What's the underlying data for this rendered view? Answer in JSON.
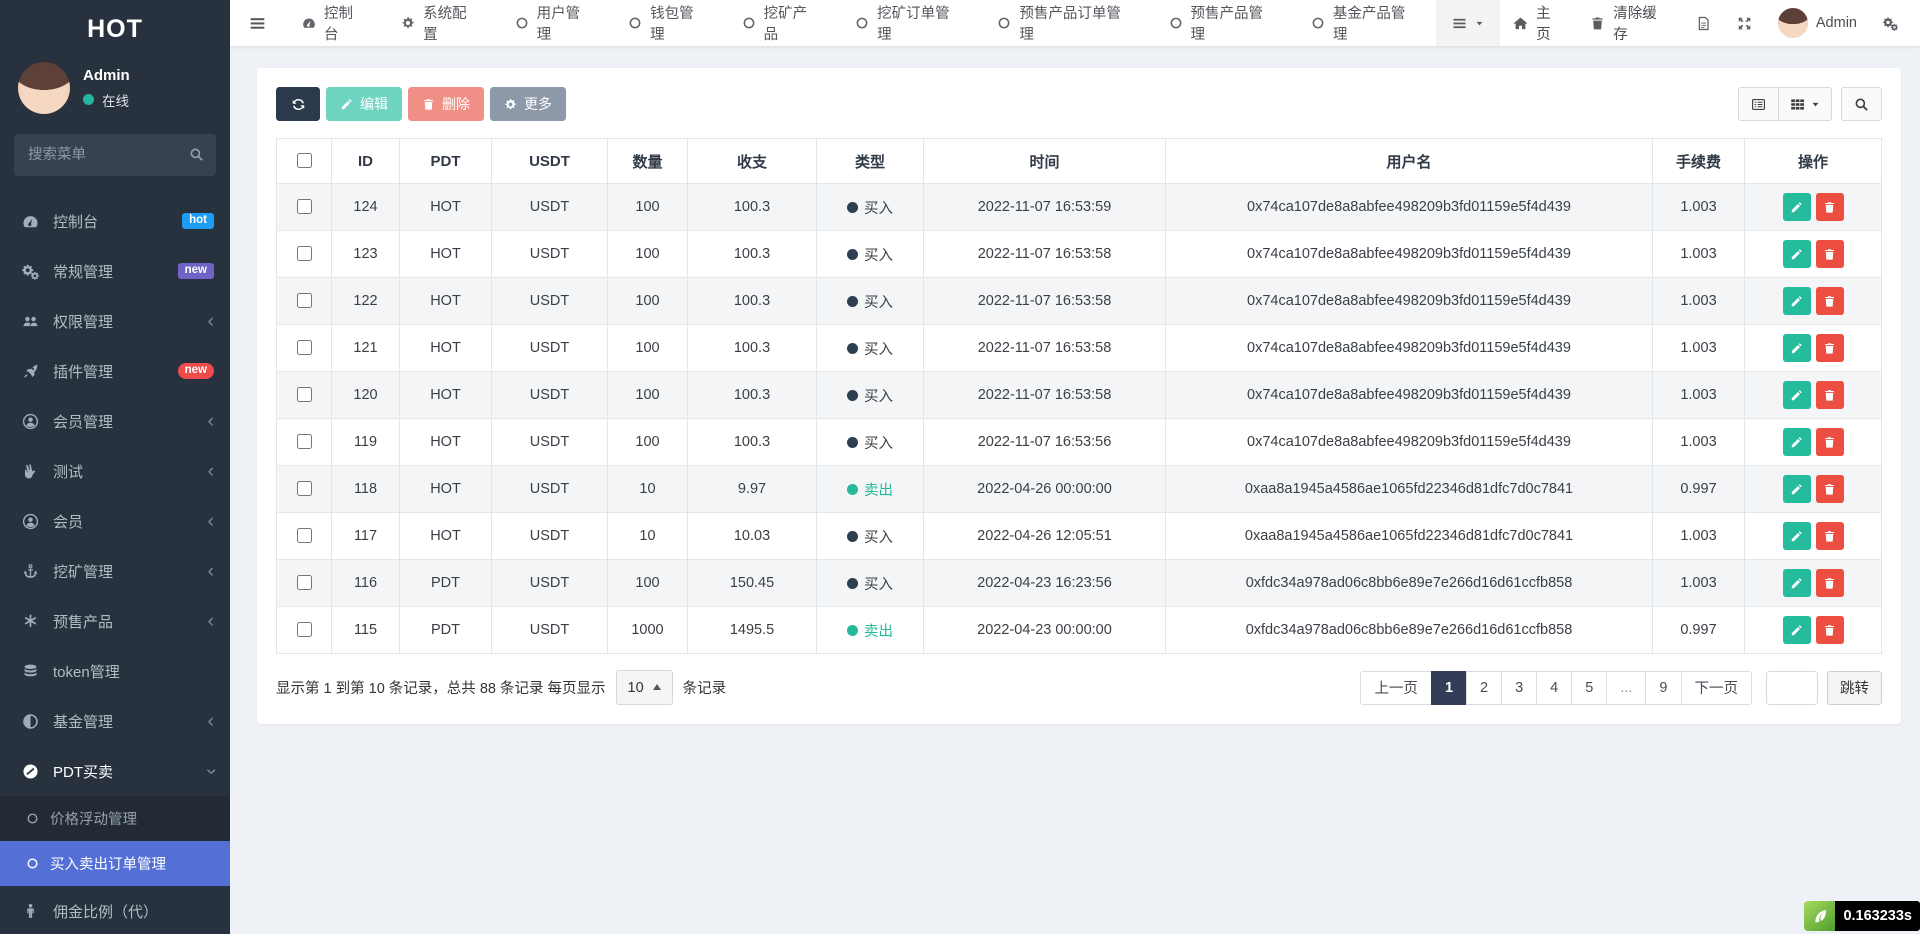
{
  "sidebar": {
    "title": "HOT",
    "user": {
      "name": "Admin",
      "status_label": "在线"
    },
    "search_placeholder": "搜索菜单",
    "menu": [
      {
        "label": "控制台",
        "icon": "gauge-icon",
        "badge": "hot",
        "badge_color": "#1d9cf4",
        "badge_shape": "rect"
      },
      {
        "label": "常规管理",
        "icon": "gears-icon",
        "badge": "new",
        "badge_color": "#6f63c6",
        "badge_shape": "rect"
      },
      {
        "label": "权限管理",
        "icon": "users-icon",
        "chevron": "left"
      },
      {
        "label": "插件管理",
        "icon": "rocket-icon",
        "badge": "new",
        "badge_color": "#ee4c4c",
        "badge_shape": "pill"
      },
      {
        "label": "会员管理",
        "icon": "user-circle-icon",
        "chevron": "left"
      },
      {
        "label": "测试",
        "icon": "peace-hand-icon",
        "chevron": "left"
      },
      {
        "label": "会员",
        "icon": "user-circle-icon",
        "chevron": "left"
      },
      {
        "label": "挖矿管理",
        "icon": "anchor-icon",
        "chevron": "left"
      },
      {
        "label": "预售产品",
        "icon": "asterisk-icon",
        "chevron": "left"
      },
      {
        "label": "token管理",
        "icon": "database-icon"
      },
      {
        "label": "基金管理",
        "icon": "adjust-icon",
        "chevron": "left"
      },
      {
        "label": "PDT买卖",
        "icon": "disc-icon",
        "chevron": "down",
        "expanded": true,
        "children": [
          {
            "label": "价格浮动管理",
            "active": false
          },
          {
            "label": "买入卖出订单管理",
            "active": true
          }
        ]
      },
      {
        "label": "佣金比例（代）",
        "icon": "male-icon"
      }
    ]
  },
  "topnav": {
    "tabs": [
      {
        "label": "控制台",
        "icon": "gauge-icon"
      },
      {
        "label": "系统配置",
        "icon": "gear-icon"
      },
      {
        "label": "用户管理",
        "icon": "circle-o-icon"
      },
      {
        "label": "钱包管理",
        "icon": "circle-o-icon"
      },
      {
        "label": "挖矿产品",
        "icon": "circle-o-icon"
      },
      {
        "label": "挖矿订单管理",
        "icon": "circle-o-icon"
      },
      {
        "label": "预售产品订单管理",
        "icon": "circle-o-icon"
      },
      {
        "label": "预售产品管理",
        "icon": "circle-o-icon"
      },
      {
        "label": "基金产品管理",
        "icon": "circle-o-icon"
      }
    ],
    "home_label": "主页",
    "clear_cache_label": "清除缓存",
    "user_label": "Admin"
  },
  "toolbar": {
    "edit_label": "编辑",
    "delete_label": "删除",
    "more_label": "更多"
  },
  "table": {
    "headers": [
      "ID",
      "PDT",
      "USDT",
      "数量",
      "收支",
      "类型",
      "时间",
      "用户名",
      "手续费",
      "操作"
    ],
    "type_buy_label": "买入",
    "type_sell_label": "卖出",
    "rows": [
      {
        "id": "124",
        "pdt": "HOT",
        "usdt": "USDT",
        "qty": "100",
        "amount": "100.3",
        "type": "buy",
        "time": "2022-11-07 16:53:59",
        "user": "0x74ca107de8a8abfee498209b3fd01159e5f4d439",
        "fee": "1.003"
      },
      {
        "id": "123",
        "pdt": "HOT",
        "usdt": "USDT",
        "qty": "100",
        "amount": "100.3",
        "type": "buy",
        "time": "2022-11-07 16:53:58",
        "user": "0x74ca107de8a8abfee498209b3fd01159e5f4d439",
        "fee": "1.003"
      },
      {
        "id": "122",
        "pdt": "HOT",
        "usdt": "USDT",
        "qty": "100",
        "amount": "100.3",
        "type": "buy",
        "time": "2022-11-07 16:53:58",
        "user": "0x74ca107de8a8abfee498209b3fd01159e5f4d439",
        "fee": "1.003"
      },
      {
        "id": "121",
        "pdt": "HOT",
        "usdt": "USDT",
        "qty": "100",
        "amount": "100.3",
        "type": "buy",
        "time": "2022-11-07 16:53:58",
        "user": "0x74ca107de8a8abfee498209b3fd01159e5f4d439",
        "fee": "1.003"
      },
      {
        "id": "120",
        "pdt": "HOT",
        "usdt": "USDT",
        "qty": "100",
        "amount": "100.3",
        "type": "buy",
        "time": "2022-11-07 16:53:58",
        "user": "0x74ca107de8a8abfee498209b3fd01159e5f4d439",
        "fee": "1.003"
      },
      {
        "id": "119",
        "pdt": "HOT",
        "usdt": "USDT",
        "qty": "100",
        "amount": "100.3",
        "type": "buy",
        "time": "2022-11-07 16:53:56",
        "user": "0x74ca107de8a8abfee498209b3fd01159e5f4d439",
        "fee": "1.003"
      },
      {
        "id": "118",
        "pdt": "HOT",
        "usdt": "USDT",
        "qty": "10",
        "amount": "9.97",
        "type": "sell",
        "time": "2022-04-26 00:00:00",
        "user": "0xaa8a1945a4586ae1065fd22346d81dfc7d0c7841",
        "fee": "0.997"
      },
      {
        "id": "117",
        "pdt": "HOT",
        "usdt": "USDT",
        "qty": "10",
        "amount": "10.03",
        "type": "buy",
        "time": "2022-04-26 12:05:51",
        "user": "0xaa8a1945a4586ae1065fd22346d81dfc7d0c7841",
        "fee": "1.003"
      },
      {
        "id": "116",
        "pdt": "PDT",
        "usdt": "USDT",
        "qty": "100",
        "amount": "150.45",
        "type": "buy",
        "time": "2022-04-23 16:23:56",
        "user": "0xfdc34a978ad06c8bb6e89e7e266d16d61ccfb858",
        "fee": "1.003"
      },
      {
        "id": "115",
        "pdt": "PDT",
        "usdt": "USDT",
        "qty": "1000",
        "amount": "1495.5",
        "type": "sell",
        "time": "2022-04-23 00:00:00",
        "user": "0xfdc34a978ad06c8bb6e89e7e266d16d61ccfb858",
        "fee": "0.997"
      }
    ]
  },
  "footer": {
    "records_prefix": "显示第 1 到第 10 条记录，总共 88 条记录 每页显示",
    "page_size": "10",
    "records_suffix": "条记录",
    "pagination": {
      "prev": "上一页",
      "pages": [
        "1",
        "2",
        "3",
        "4",
        "5",
        "...",
        "9"
      ],
      "active": "1",
      "next": "下一页",
      "jump_label": "跳转"
    },
    "elapsed": "0.163233s"
  },
  "colors": {
    "sidebar_bg": "#28323e",
    "submenu_active": "#5470d6",
    "buy_dot": "#2c3e50",
    "sell_green": "#26b99a",
    "primary_dark": "#2c3a4d",
    "success": "#18bc9c",
    "danger": "#e74c3c",
    "badge_hot": "#1d9cf4",
    "badge_new_purple": "#6f63c6",
    "badge_new_red": "#ee4c4c"
  }
}
